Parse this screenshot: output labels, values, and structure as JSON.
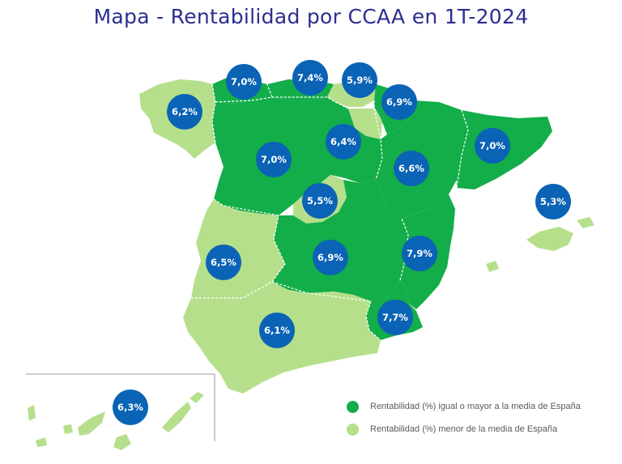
{
  "title": "Mapa - Rentabilidad por CCAA en 1T-2024",
  "colors": {
    "above_or_equal": "#13ad4a",
    "below": "#b6df8c",
    "badge": "#0a63b5",
    "title": "#2b2e8f"
  },
  "legend": {
    "above_or_equal": "Rentabilidad (%) igual o mayor a la media de España",
    "below": "Rentabilidad (%) menor de la media de España"
  },
  "regions": [
    {
      "label": "7,0%",
      "fill": "above"
    },
    {
      "label": "7,4%",
      "fill": "above"
    },
    {
      "label": "5,9%",
      "fill": "below"
    },
    {
      "label": "6,2%",
      "fill": "below"
    },
    {
      "label": "6,9%",
      "fill": "above"
    },
    {
      "label": "6,4%",
      "fill": "below"
    },
    {
      "label": "7,0%",
      "fill": "above"
    },
    {
      "label": "7,0%",
      "fill": "above"
    },
    {
      "label": "6,6%",
      "fill": "above"
    },
    {
      "label": "5,3%",
      "fill": "below"
    },
    {
      "label": "5,5%",
      "fill": "below"
    },
    {
      "label": "6,5%",
      "fill": "below"
    },
    {
      "label": "6,9%",
      "fill": "above"
    },
    {
      "label": "7,9%",
      "fill": "above"
    },
    {
      "label": "7,7%",
      "fill": "above"
    },
    {
      "label": "6,1%",
      "fill": "below"
    },
    {
      "label": "6,3%",
      "fill": "below"
    }
  ]
}
